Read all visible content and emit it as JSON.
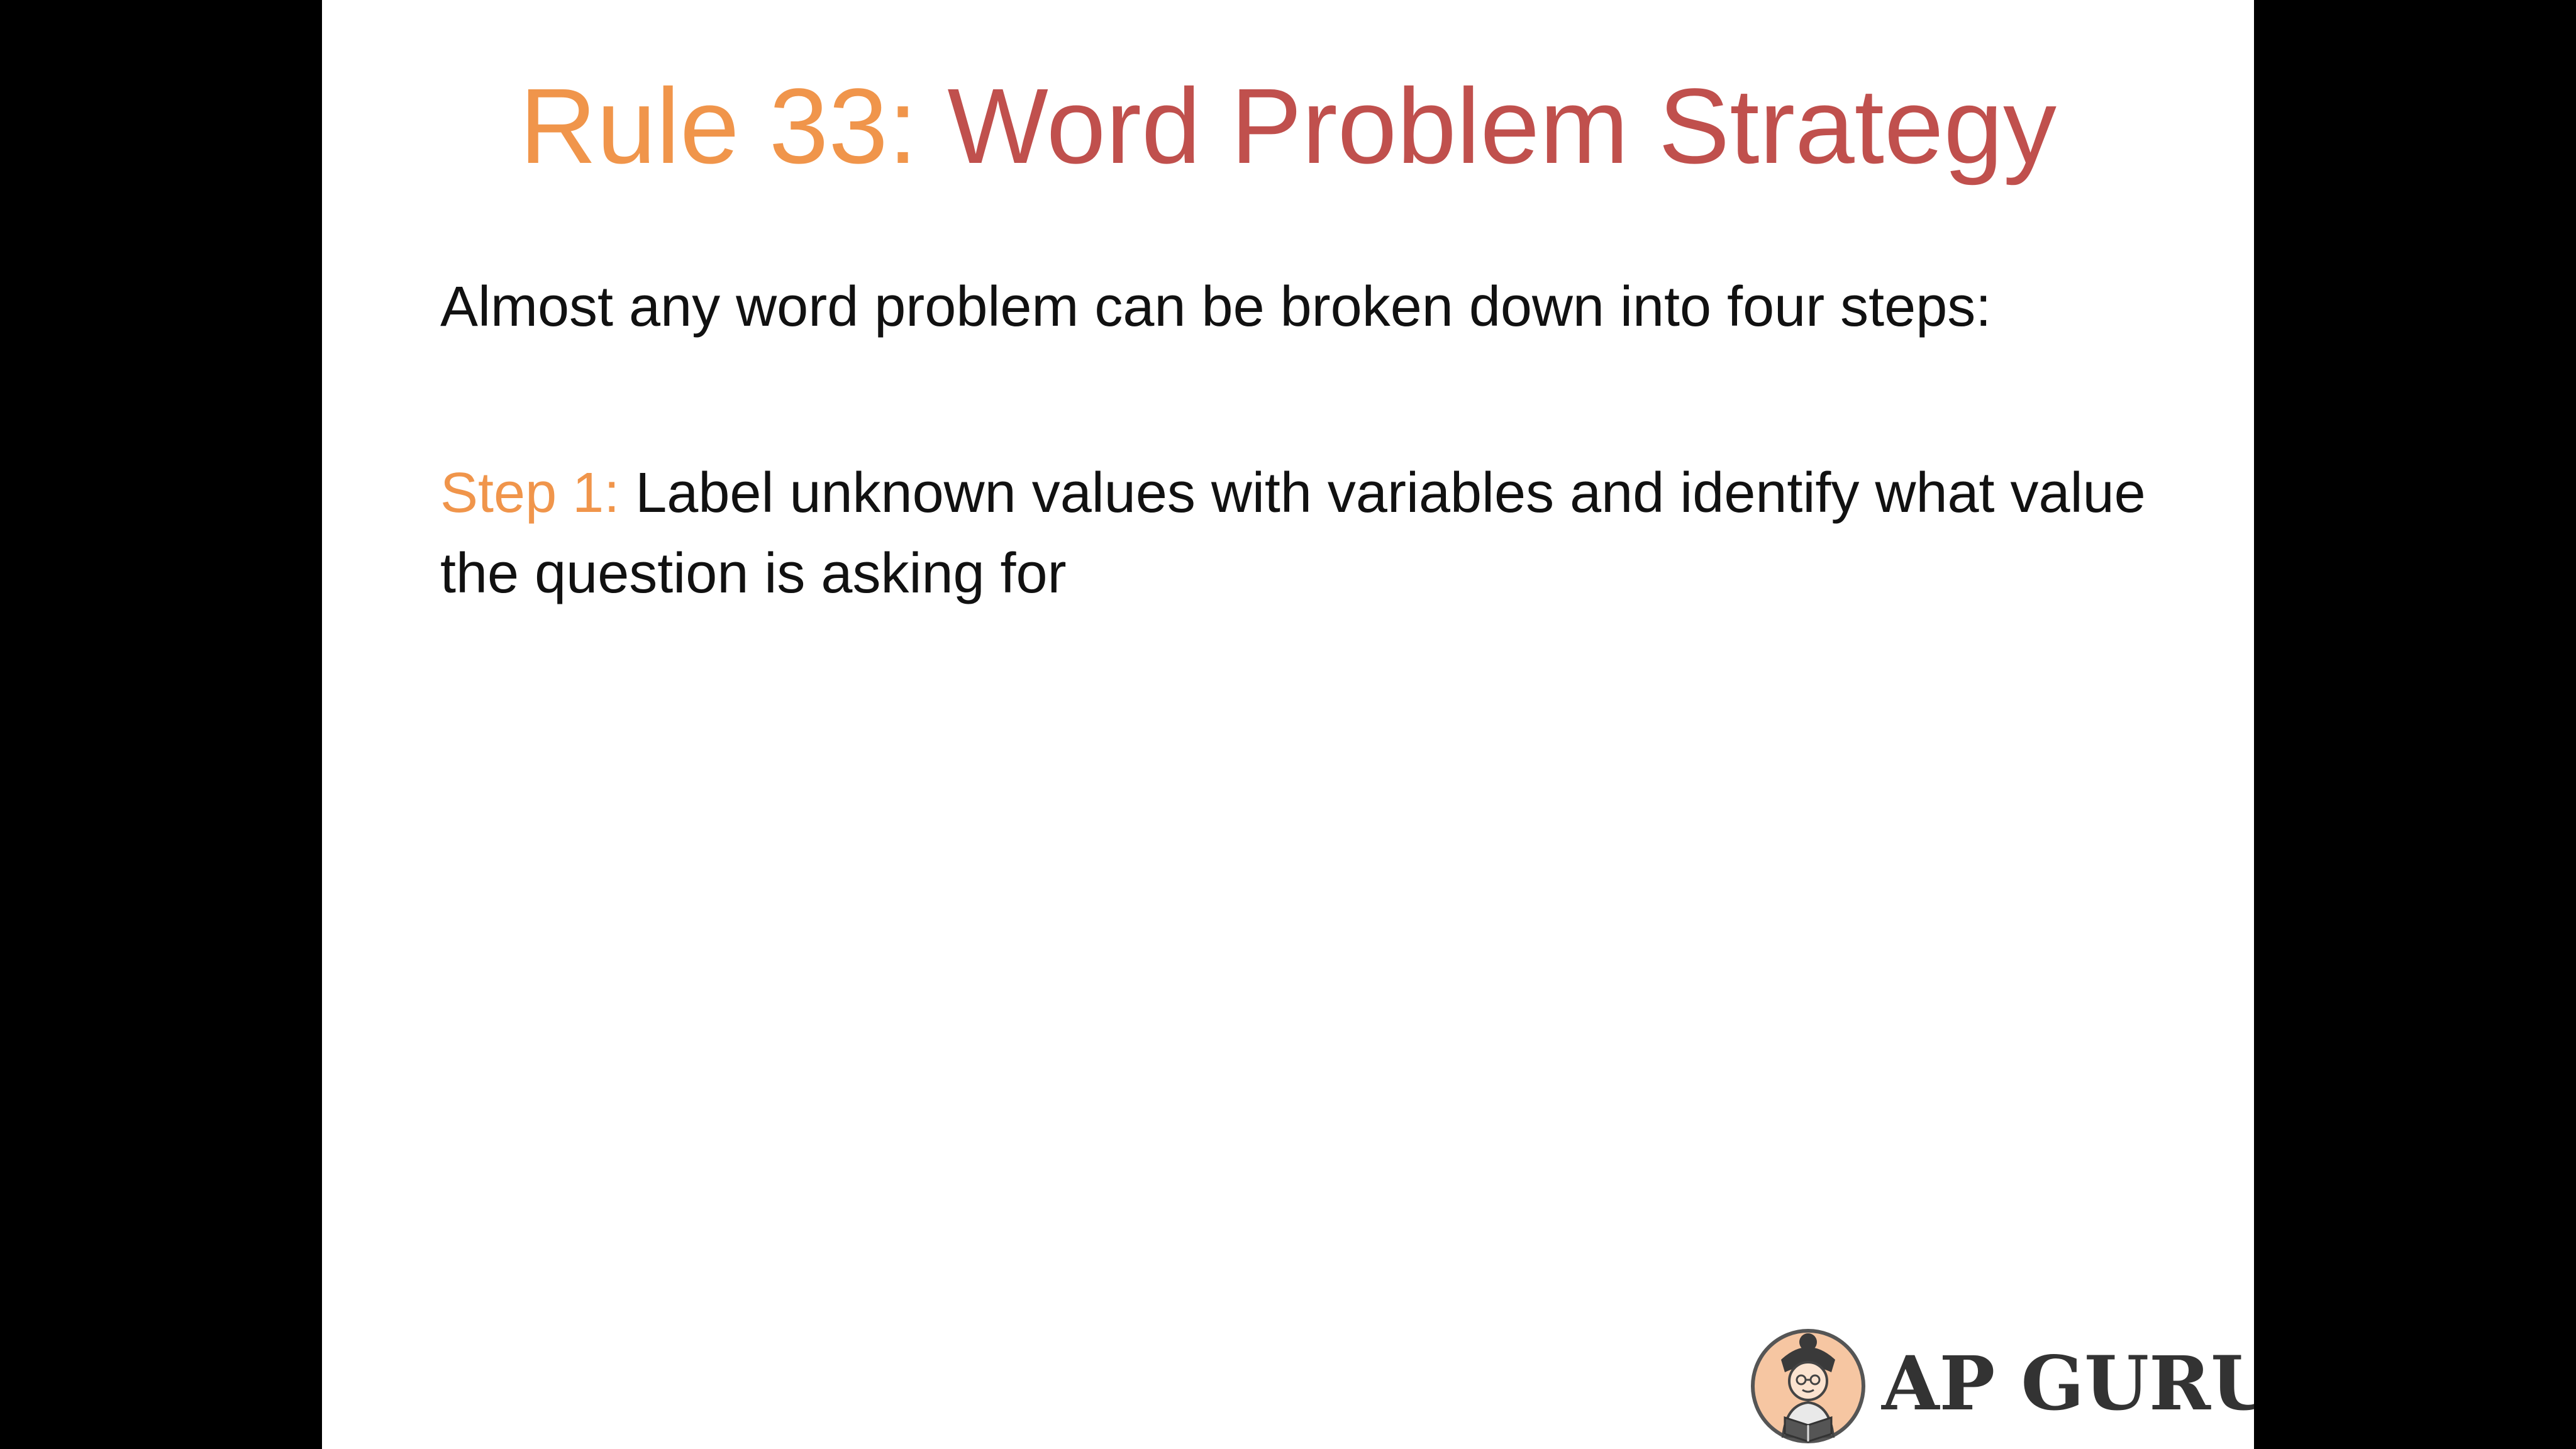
{
  "slide": {
    "title_prefix": "Rule 33:",
    "title_main": "Word Problem Strategy",
    "intro": "Almost any word problem can be broken down into four steps:",
    "steps": [
      {
        "label": "Step 1:",
        "text": "Label unknown values with variables and identify what value the question is asking for"
      }
    ]
  },
  "logo": {
    "text": "AP GURU",
    "icon": "guru-character-icon"
  },
  "colors": {
    "accent_orange": "#f0954b",
    "title_red": "#c0504d",
    "body_text": "#111111",
    "logo_text": "#333333",
    "background": "#ffffff",
    "letterbox": "#000000"
  }
}
